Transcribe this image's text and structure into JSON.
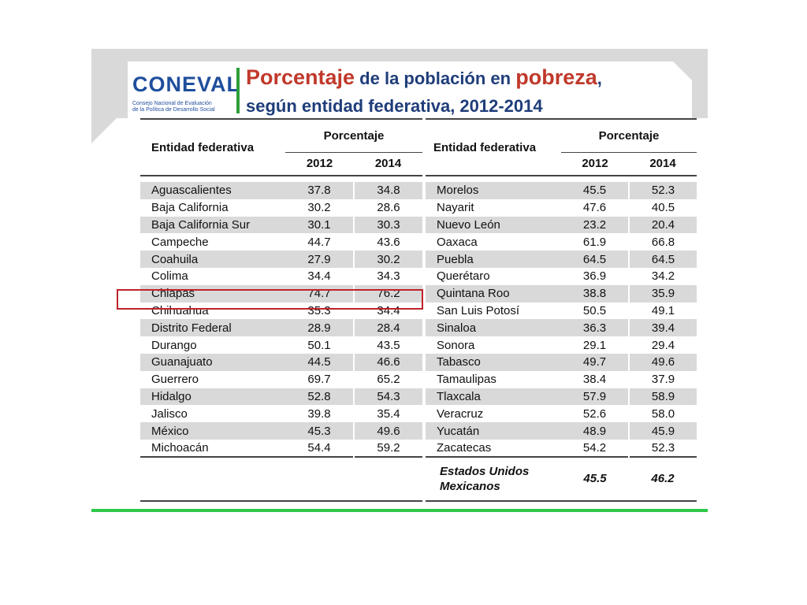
{
  "logo": {
    "wordmark": "CONEVAL",
    "sub1": "Consejo Nacional de Evaluación",
    "sub2": "de la Política de Desarrollo Social"
  },
  "title": {
    "part1": "Porcentaje",
    "part2": " de la población en ",
    "part3": "pobreza",
    "part4": ",",
    "line2": "según entidad federativa",
    "line2b": ", 2012-2014"
  },
  "table": {
    "entity_header": "Entidad federativa",
    "percent_header": "Porcentaje",
    "year1": "2012",
    "year2": "2014",
    "left_rows": [
      {
        "name": "Aguascalientes",
        "v2012": "37.8",
        "v2014": "34.8"
      },
      {
        "name": "Baja California",
        "v2012": "30.2",
        "v2014": "28.6"
      },
      {
        "name": "Baja California Sur",
        "v2012": "30.1",
        "v2014": "30.3"
      },
      {
        "name": "Campeche",
        "v2012": "44.7",
        "v2014": "43.6"
      },
      {
        "name": "Coahuila",
        "v2012": "27.9",
        "v2014": "30.2"
      },
      {
        "name": "Colima",
        "v2012": "34.4",
        "v2014": "34.3"
      },
      {
        "name": "Chiapas",
        "v2012": "74.7",
        "v2014": "76.2"
      },
      {
        "name": "Chihuahua",
        "v2012": "35.3",
        "v2014": "34.4"
      },
      {
        "name": "Distrito Federal",
        "v2012": "28.9",
        "v2014": "28.4"
      },
      {
        "name": "Durango",
        "v2012": "50.1",
        "v2014": "43.5"
      },
      {
        "name": "Guanajuato",
        "v2012": "44.5",
        "v2014": "46.6"
      },
      {
        "name": "Guerrero",
        "v2012": "69.7",
        "v2014": "65.2"
      },
      {
        "name": "Hidalgo",
        "v2012": "52.8",
        "v2014": "54.3"
      },
      {
        "name": "Jalisco",
        "v2012": "39.8",
        "v2014": "35.4"
      },
      {
        "name": "México",
        "v2012": "45.3",
        "v2014": "49.6"
      },
      {
        "name": "Michoacán",
        "v2012": "54.4",
        "v2014": "59.2"
      }
    ],
    "right_rows": [
      {
        "name": "Morelos",
        "v2012": "45.5",
        "v2014": "52.3"
      },
      {
        "name": "Nayarit",
        "v2012": "47.6",
        "v2014": "40.5"
      },
      {
        "name": "Nuevo León",
        "v2012": "23.2",
        "v2014": "20.4"
      },
      {
        "name": "Oaxaca",
        "v2012": "61.9",
        "v2014": "66.8"
      },
      {
        "name": "Puebla",
        "v2012": "64.5",
        "v2014": "64.5"
      },
      {
        "name": "Querétaro",
        "v2012": "36.9",
        "v2014": "34.2"
      },
      {
        "name": "Quintana Roo",
        "v2012": "38.8",
        "v2014": "35.9"
      },
      {
        "name": "San Luis Potosí",
        "v2012": "50.5",
        "v2014": "49.1"
      },
      {
        "name": "Sinaloa",
        "v2012": "36.3",
        "v2014": "39.4"
      },
      {
        "name": "Sonora",
        "v2012": "29.1",
        "v2014": "29.4"
      },
      {
        "name": "Tabasco",
        "v2012": "49.7",
        "v2014": "49.6"
      },
      {
        "name": "Tamaulipas",
        "v2012": "38.4",
        "v2014": "37.9"
      },
      {
        "name": "Tlaxcala",
        "v2012": "57.9",
        "v2014": "58.9"
      },
      {
        "name": "Veracruz",
        "v2012": "52.6",
        "v2014": "58.0"
      },
      {
        "name": "Yucatán",
        "v2012": "48.9",
        "v2014": "45.9"
      },
      {
        "name": "Zacatecas",
        "v2012": "54.2",
        "v2014": "52.3"
      }
    ],
    "total": {
      "name_line1": "Estados Unidos",
      "name_line2": "Mexicanos",
      "v2012": "45.5",
      "v2014": "46.2"
    }
  },
  "colors": {
    "highlight_border": "#c0232a",
    "title_red": "#c0392b",
    "title_blue": "#1f3d7a",
    "accent_green": "#2ec84a",
    "row_shade": "#d9d9d9"
  },
  "highlighted_row": "Chiapas"
}
